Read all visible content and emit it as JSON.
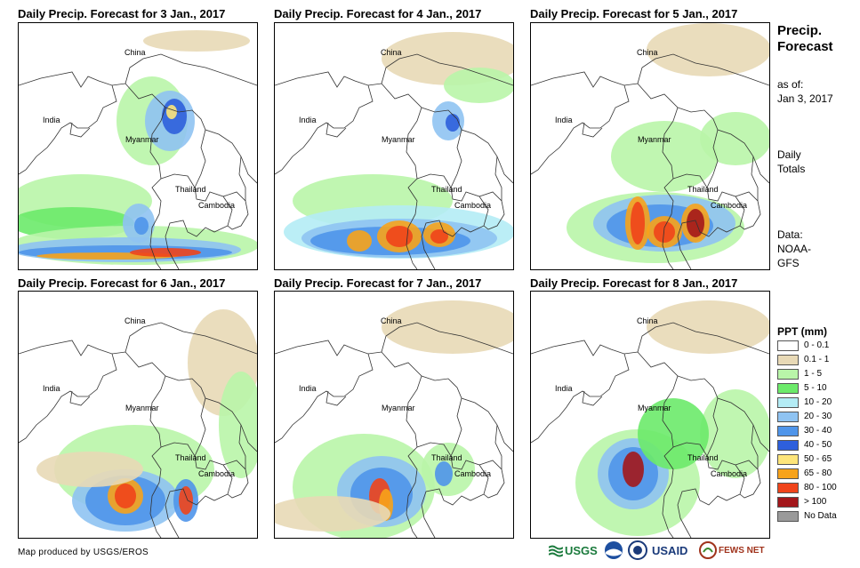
{
  "panels": [
    {
      "title": "Daily Precip. Forecast for 3 Jan., 2017"
    },
    {
      "title": "Daily Precip. Forecast for 4 Jan., 2017"
    },
    {
      "title": "Daily Precip. Forecast for 5 Jan., 2017"
    },
    {
      "title": "Daily Precip. Forecast for 6 Jan., 2017"
    },
    {
      "title": "Daily Precip. Forecast for 7 Jan., 2017"
    },
    {
      "title": "Daily Precip. Forecast for 8 Jan., 2017"
    }
  ],
  "map_labels": {
    "china": "China",
    "india": "India",
    "myanmar": "Myanmar",
    "thailand": "Thailand",
    "cambodia": "Cambodia"
  },
  "sidebar": {
    "title_line1": "Precip.",
    "title_line2": "Forecast",
    "asof_line1": "as of:",
    "asof_line2": "Jan 3, 2017",
    "totals_line1": "Daily",
    "totals_line2": "Totals",
    "data_line1": "Data:",
    "data_line2": "NOAA-",
    "data_line3": "GFS"
  },
  "legend": {
    "title": "PPT (mm)",
    "items": [
      {
        "label": "0 - 0.1",
        "color": "#ffffff"
      },
      {
        "label": "0.1 - 1",
        "color": "#e8d9b6"
      },
      {
        "label": "1 - 5",
        "color": "#b9f5a9"
      },
      {
        "label": "5 - 10",
        "color": "#6cea6a"
      },
      {
        "label": "10 - 20",
        "color": "#b4ecf5"
      },
      {
        "label": "20 - 30",
        "color": "#8fc3f2"
      },
      {
        "label": "30 - 40",
        "color": "#4f95ea"
      },
      {
        "label": "40 - 50",
        "color": "#2e5fdc"
      },
      {
        "label": "50 - 65",
        "color": "#fde57a"
      },
      {
        "label": "65 - 80",
        "color": "#f7a31b"
      },
      {
        "label": "80 - 100",
        "color": "#f0441b"
      },
      {
        "label": "> 100",
        "color": "#a3171b"
      },
      {
        "label": "No Data",
        "color": "#9a9a9a"
      }
    ]
  },
  "footer": {
    "credit": "Map produced by USGS/EROS"
  },
  "logos": {
    "usgs": "USGS",
    "usaid": "USAID",
    "fewsnet": "FEWS NET"
  }
}
